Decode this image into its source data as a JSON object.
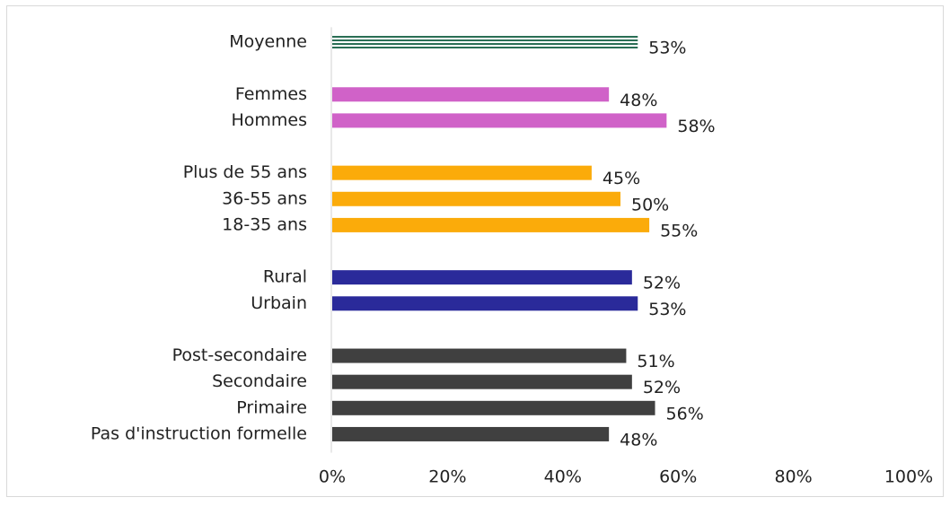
{
  "chart_data": {
    "type": "bar",
    "orientation": "horizontal",
    "categories": [
      "Moyenne",
      null,
      "Femmes",
      "Hommes",
      null,
      "Plus de 55 ans",
      "36-55 ans",
      "18-35 ans",
      null,
      "Rural",
      "Urbain",
      null,
      "Post-secondaire",
      "Secondaire",
      "Primaire",
      "Pas d'instruction formelle"
    ],
    "values": [
      53,
      null,
      48,
      58,
      null,
      45,
      50,
      55,
      null,
      52,
      53,
      null,
      51,
      52,
      56,
      48
    ],
    "value_labels": [
      "53%",
      null,
      "48%",
      "58%",
      null,
      "45%",
      "50%",
      "55%",
      null,
      "52%",
      "53%",
      null,
      "51%",
      "52%",
      "56%",
      "48%"
    ],
    "colors": [
      "#2a6e55",
      null,
      "#d062c8",
      "#d062c8",
      null,
      "#fbab0a",
      "#fbab0a",
      "#fbab0a",
      null,
      "#2a2a9a",
      "#2a2a9a",
      null,
      "#404040",
      "#404040",
      "#404040",
      "#404040"
    ],
    "bar_styles": [
      "striped",
      null,
      "solid",
      "solid",
      null,
      "solid",
      "solid",
      "solid",
      null,
      "solid",
      "solid",
      null,
      "solid",
      "solid",
      "solid",
      "solid"
    ],
    "xlim": [
      0,
      100
    ],
    "xticks": [
      {
        "value": 0,
        "label": "0%"
      },
      {
        "value": 20,
        "label": "20%"
      },
      {
        "value": 40,
        "label": "40%"
      },
      {
        "value": 60,
        "label": "60%"
      },
      {
        "value": 80,
        "label": "80%"
      },
      {
        "value": 100,
        "label": "100%"
      }
    ],
    "grid": false
  }
}
